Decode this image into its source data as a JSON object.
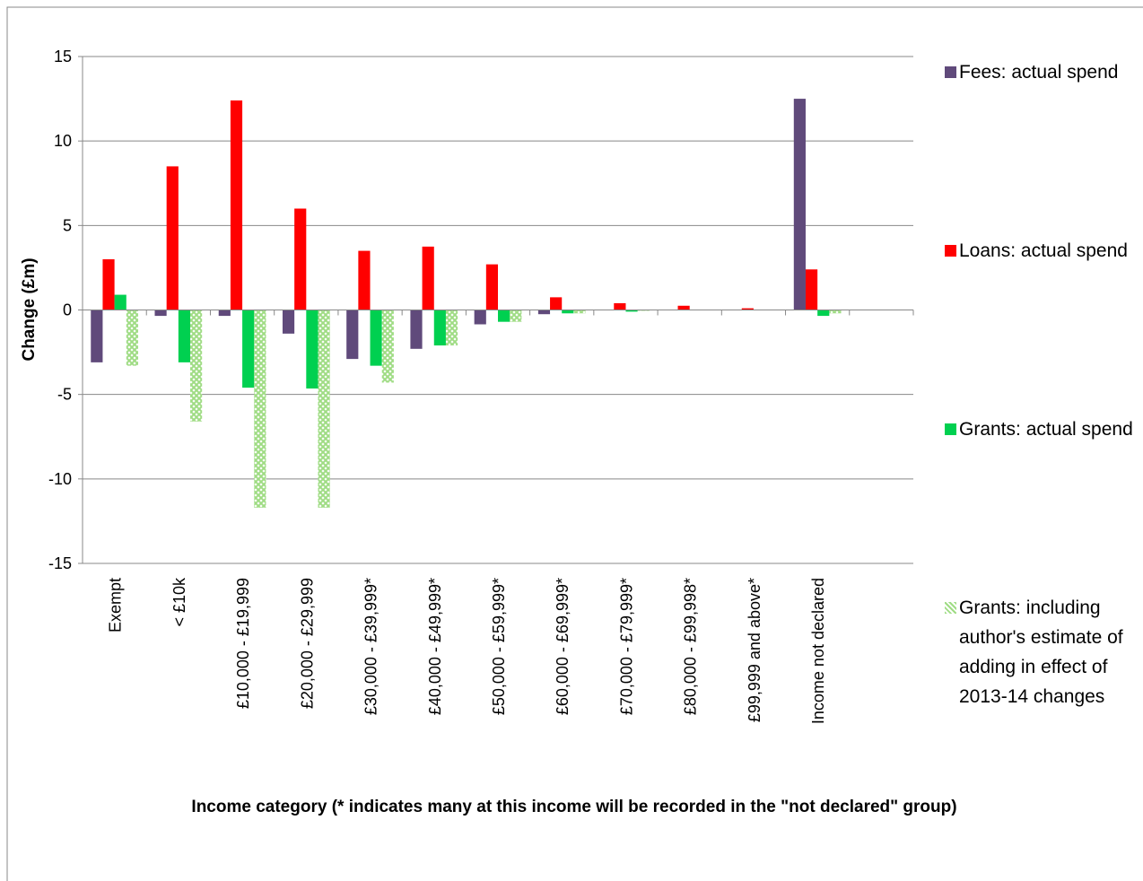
{
  "chart_data": {
    "type": "bar",
    "y_label": "Change (£m)",
    "x_label": "Income category (* indicates many at this income will be recorded in the \"not declared\" group)",
    "categories": [
      "Exempt",
      "< £10k",
      "£10,000 - £19,999",
      "£20,000 - £29,999",
      "£30,000 - £39,999*",
      "£40,000 - £49,999*",
      "£50,000 - £59,999*",
      "£60,000 - £69,999*",
      "£70,000 - £79,999*",
      "£80,000 - £99,998*",
      "£99,999 and above*",
      "Income not declared",
      null
    ],
    "series": [
      {
        "name": "Fees: actual spend",
        "color": "#604a7b",
        "values": [
          -3.1,
          -0.35,
          -0.35,
          -1.4,
          -2.9,
          -2.3,
          -0.85,
          -0.25,
          0,
          0,
          0,
          12.5,
          null
        ]
      },
      {
        "name": "Loans: actual spend",
        "color": "#ff0000",
        "values": [
          3.0,
          8.5,
          12.4,
          6.0,
          3.5,
          3.75,
          2.7,
          0.75,
          0.4,
          0.25,
          0.1,
          2.4,
          null
        ]
      },
      {
        "name": "Grants: actual spend",
        "color": "#00d050",
        "values": [
          0.9,
          -3.1,
          -4.6,
          -4.65,
          -3.3,
          -2.1,
          -0.7,
          -0.2,
          -0.1,
          0,
          0,
          -0.35,
          null
        ]
      },
      {
        "name": "Grants:  including author's estimate of adding in effect of 2013-14 changes",
        "color": "#9fdc84",
        "hatch": true,
        "values": [
          -3.3,
          -6.6,
          -11.7,
          -11.7,
          -4.3,
          -2.1,
          -0.7,
          -0.2,
          -0.05,
          0,
          0,
          -0.2,
          null
        ]
      }
    ],
    "ylim": [
      -15,
      15
    ],
    "yticks": [
      -15,
      -10,
      -5,
      0,
      5,
      10,
      15
    ],
    "grid": true,
    "legend": "right"
  }
}
